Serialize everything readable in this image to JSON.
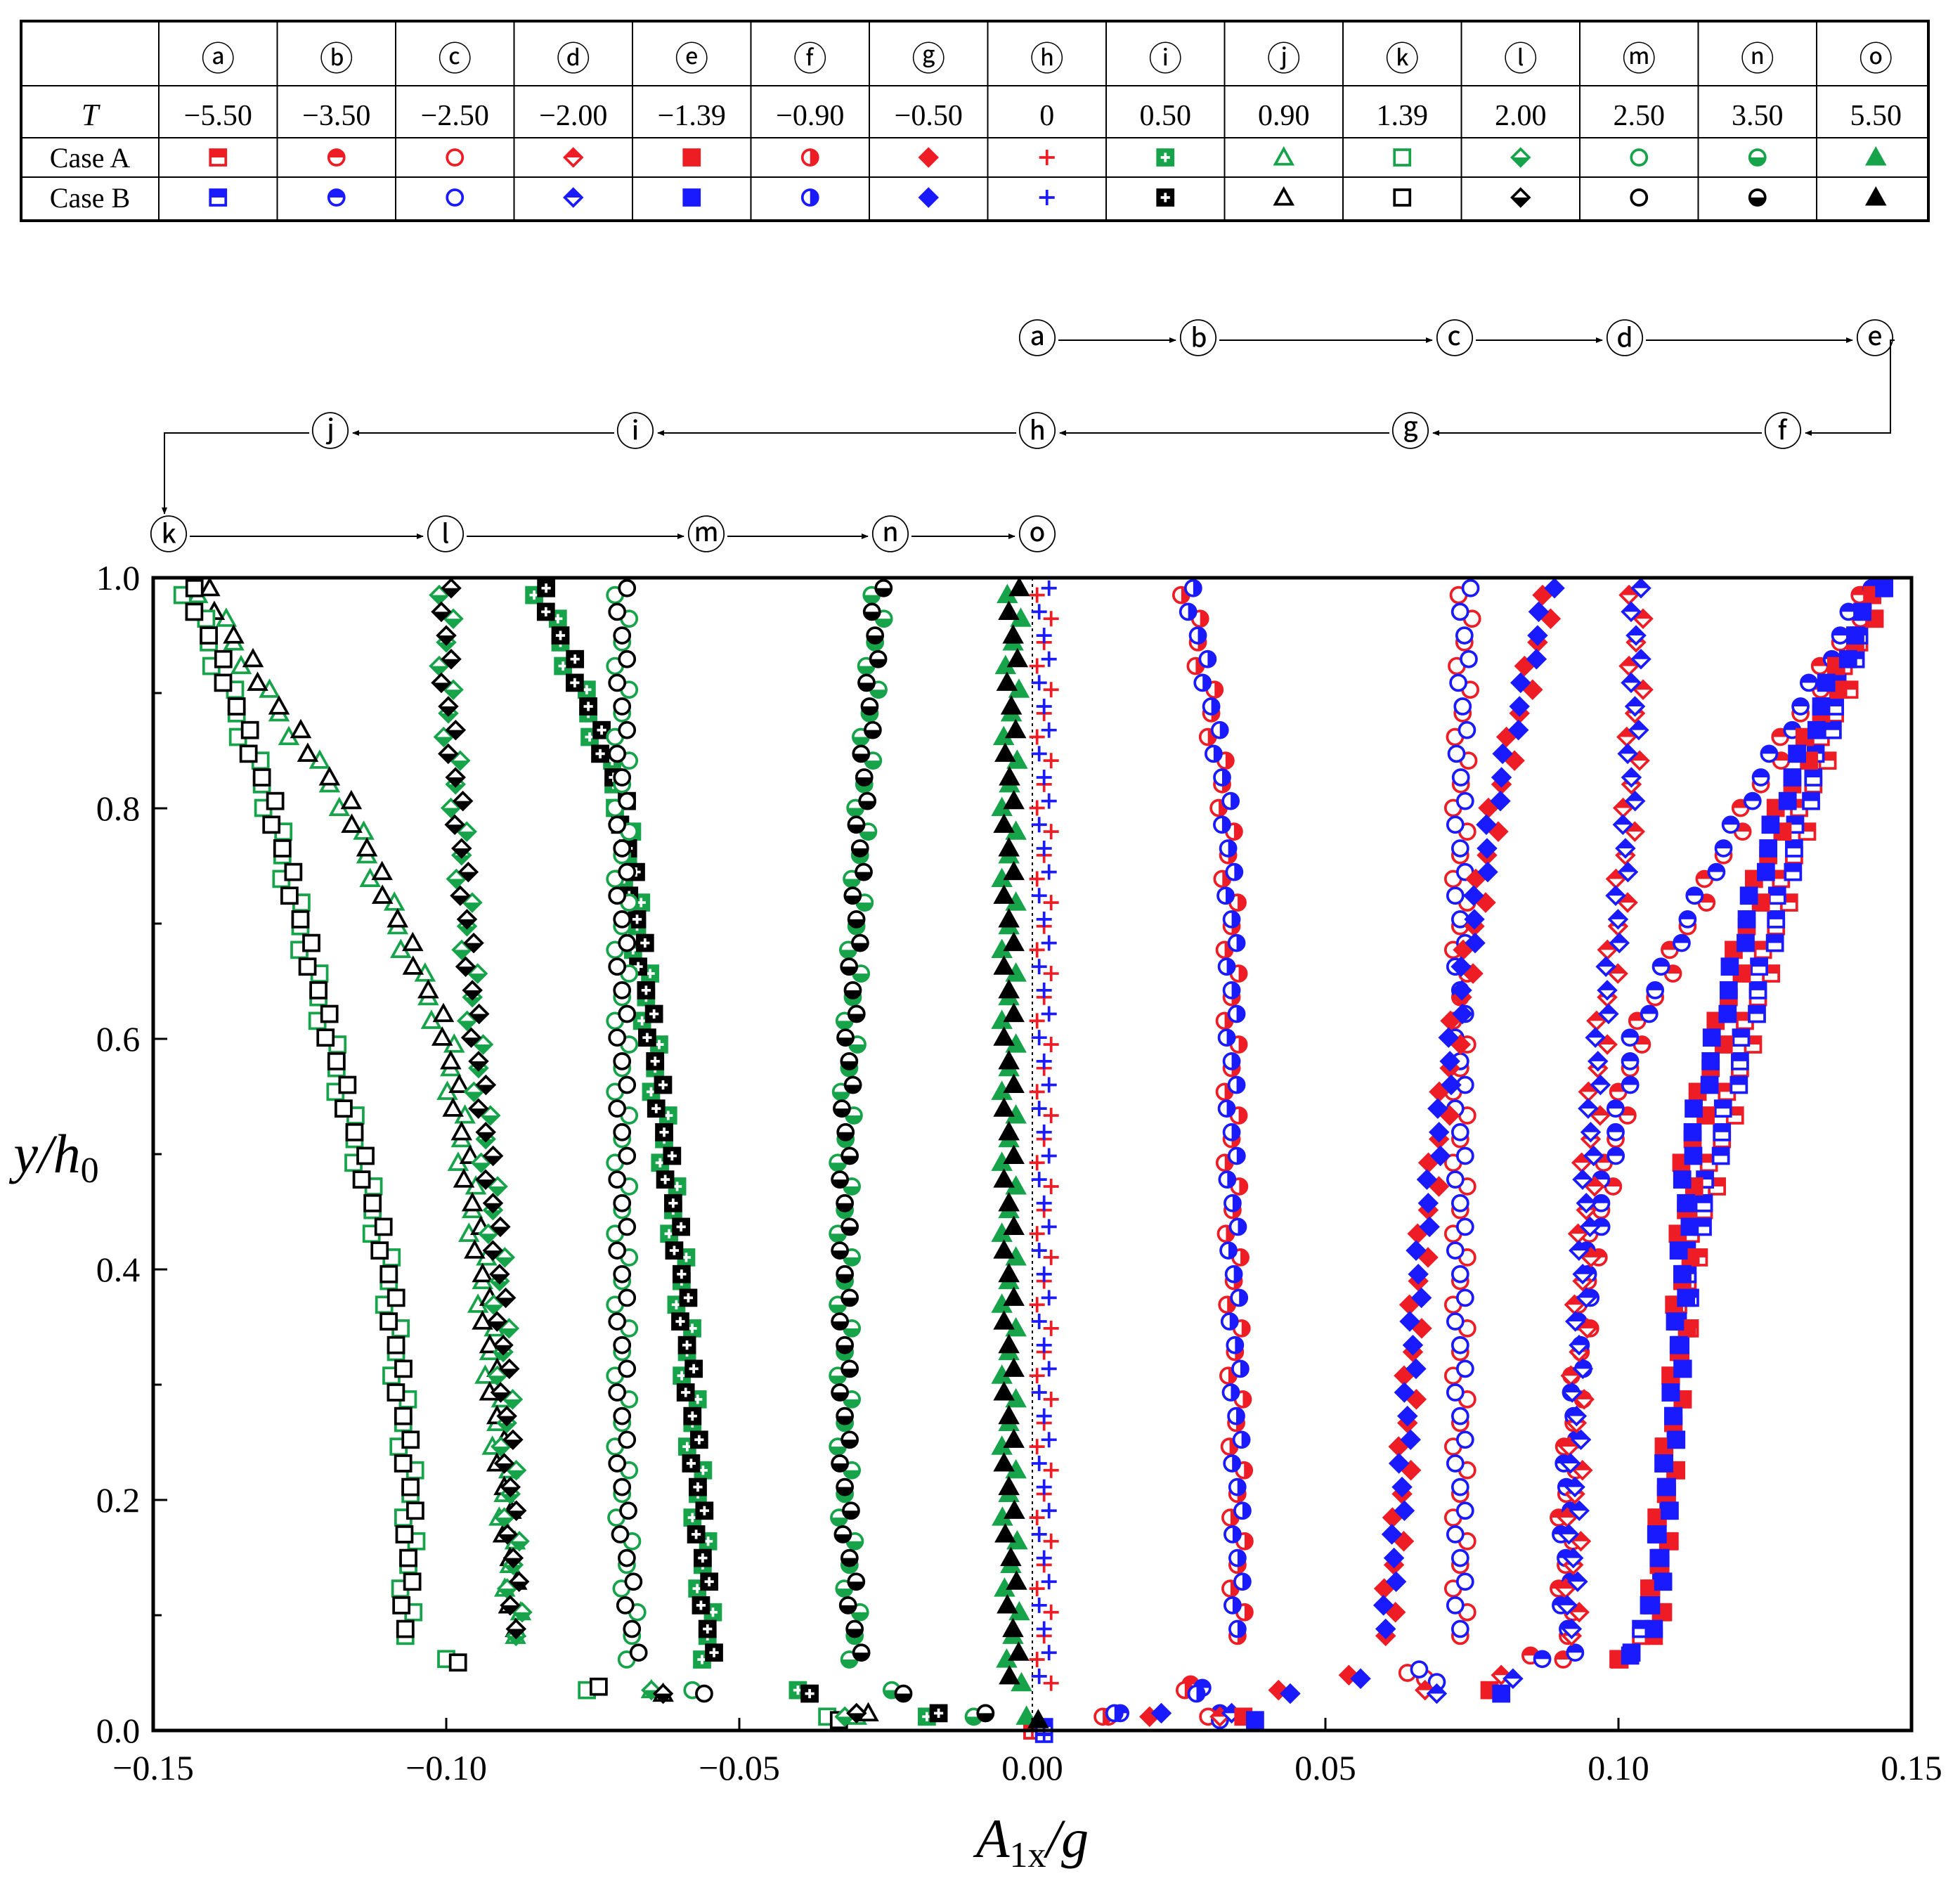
{
  "legend_table": {
    "header_label": "T",
    "row_labels": [
      "Case A",
      "Case B"
    ],
    "case_colors": {
      "A": [
        "#ee1c25",
        "#ee1c25",
        "#ee1c25",
        "#ee1c25",
        "#ee1c25",
        "#ee1c25",
        "#ee1c25",
        "#ee1c25",
        "#16a34a",
        "#16a34a",
        "#16a34a",
        "#16a34a",
        "#16a34a",
        "#16a34a",
        "#16a34a"
      ],
      "B": [
        "#1a1aff",
        "#1a1aff",
        "#1a1aff",
        "#1a1aff",
        "#1a1aff",
        "#1a1aff",
        "#1a1aff",
        "#1a1aff",
        "#000000",
        "#000000",
        "#000000",
        "#000000",
        "#000000",
        "#000000",
        "#000000"
      ]
    },
    "columns": [
      {
        "id": "a",
        "label": "ⓐ",
        "T": "−5.50",
        "marker": "square-tophalf"
      },
      {
        "id": "b",
        "label": "ⓑ",
        "T": "−3.50",
        "marker": "circle-tophalf"
      },
      {
        "id": "c",
        "label": "ⓒ",
        "T": "−2.50",
        "marker": "circle-open"
      },
      {
        "id": "d",
        "label": "ⓓ",
        "T": "−2.00",
        "marker": "diamond-tophalf"
      },
      {
        "id": "e",
        "label": "ⓔ",
        "T": "−1.39",
        "marker": "square-filled"
      },
      {
        "id": "f",
        "label": "ⓕ",
        "T": "−0.90",
        "marker": "circle-righthalf"
      },
      {
        "id": "g",
        "label": "ⓖ",
        "T": "−0.50",
        "marker": "diamond-filled"
      },
      {
        "id": "h",
        "label": "ⓗ",
        "T": "0",
        "marker": "plus"
      },
      {
        "id": "i",
        "label": "ⓘ",
        "T": "0.50",
        "marker": "square-cross"
      },
      {
        "id": "j",
        "label": "ⓙ",
        "T": "0.90",
        "marker": "triangle-open"
      },
      {
        "id": "k",
        "label": "ⓚ",
        "T": "1.39",
        "marker": "square-open"
      },
      {
        "id": "l",
        "label": "ⓛ",
        "T": "2.00",
        "marker": "diamond-bottomhalf"
      },
      {
        "id": "m",
        "label": "ⓜ",
        "T": "2.50",
        "marker": "circle-open"
      },
      {
        "id": "n",
        "label": "ⓝ",
        "T": "3.50",
        "marker": "circle-bottomhalf"
      },
      {
        "id": "o",
        "label": "ⓞ",
        "T": "5.50",
        "marker": "triangle-filled"
      }
    ]
  },
  "sequence": {
    "row1": [
      "ⓐ",
      "ⓑ",
      "ⓒ",
      "ⓓ",
      "ⓔ"
    ],
    "row2": [
      "ⓕ",
      "ⓖ",
      "ⓗ",
      "ⓘ",
      "ⓙ"
    ],
    "row3": [
      "ⓚ",
      "ⓛ",
      "ⓜ",
      "ⓝ",
      "ⓞ"
    ]
  },
  "chart_data": {
    "type": "scatter",
    "xlabel_main": "A",
    "xlabel_sub": "1x",
    "xlabel_tail": "/g",
    "ylabel_main": "y/h",
    "ylabel_sub": "0",
    "xlim": [
      -0.15,
      0.15
    ],
    "ylim": [
      0.0,
      1.0
    ],
    "x_ticks": [
      -0.15,
      -0.1,
      -0.05,
      0.0,
      0.05,
      0.1,
      0.15
    ],
    "x_tick_labels": [
      "−0.15",
      "−0.10",
      "−0.05",
      "0.00",
      "0.05",
      "0.10",
      "0.15"
    ],
    "y_ticks": [
      0.0,
      0.2,
      0.4,
      0.6,
      0.8,
      1.0
    ],
    "y_tick_labels": [
      "0.0",
      "0.2",
      "0.4",
      "0.6",
      "0.8",
      "1.0"
    ],
    "y_minor_step": 0.1,
    "reference_line_x": 0.0,
    "series": [
      {
        "name": "a",
        "profile": {
          "y": [
            0.0,
            0.05,
            0.1,
            0.2,
            0.4,
            0.6,
            0.8,
            0.9,
            1.0
          ],
          "x": [
            0.0,
            0.1,
            0.106,
            0.108,
            0.112,
            0.122,
            0.132,
            0.138,
            0.145
          ]
        },
        "bottom": [
          [
            0.0,
            0.0
          ],
          [
            0.0,
            0.0
          ]
        ]
      },
      {
        "name": "b",
        "profile": {
          "y": [
            0.0,
            0.05,
            0.1,
            0.2,
            0.4,
            0.6,
            0.7,
            0.8,
            0.9,
            1.0
          ],
          "x": [
            0.0,
            0.092,
            0.091,
            0.091,
            0.095,
            0.103,
            0.112,
            0.122,
            0.133,
            0.144
          ]
        },
        "bottom": [
          [
            0.027,
            0.04
          ],
          [
            0.03,
            0.012
          ],
          [
            0.085,
            0.065
          ],
          [
            0.013,
            0.012
          ]
        ]
      },
      {
        "name": "c",
        "profile": {
          "y": [
            0.0,
            0.07,
            0.2,
            0.5,
            0.8,
            1.0
          ],
          "x": [
            0.0,
            0.073,
            0.073,
            0.073,
            0.073,
            0.074
          ]
        },
        "bottom": [
          [
            0.067,
            0.045
          ],
          [
            0.064,
            0.05
          ],
          [
            0.03,
            0.012
          ]
        ]
      },
      {
        "name": "d",
        "profile": {
          "y": [
            0.0,
            0.08,
            0.3,
            0.5,
            0.6,
            0.7,
            0.8,
            0.9,
            1.0
          ],
          "x": [
            0.0,
            0.092,
            0.093,
            0.095,
            0.097,
            0.1,
            0.102,
            0.103,
            0.103
          ]
        },
        "bottom": [
          [
            0.067,
            0.035
          ],
          [
            0.032,
            0.012
          ],
          [
            0.08,
            0.048
          ]
        ]
      },
      {
        "name": "e",
        "profile": {
          "y": [
            0.0,
            0.08,
            0.3,
            0.5,
            0.7,
            0.8,
            0.9,
            1.0
          ],
          "x": [
            0.0,
            0.106,
            0.11,
            0.112,
            0.122,
            0.128,
            0.136,
            0.146
          ]
        },
        "bottom": [
          [
            0.078,
            0.035
          ],
          [
            0.1,
            0.062
          ],
          [
            0.036,
            0.012
          ]
        ]
      },
      {
        "name": "f",
        "profile": {
          "y": [
            0.0,
            0.07,
            0.2,
            0.5,
            0.7,
            0.8,
            0.9,
            1.0
          ],
          "x": [
            0.0,
            0.035,
            0.035,
            0.034,
            0.034,
            0.033,
            0.03,
            0.026
          ]
        },
        "bottom": [
          [
            0.026,
            0.035
          ],
          [
            0.012,
            0.012
          ]
        ]
      },
      {
        "name": "g",
        "profile": {
          "y": [
            0.0,
            0.07,
            0.2,
            0.4,
            0.6,
            0.8,
            0.9,
            1.0
          ],
          "x": [
            0.0,
            0.06,
            0.063,
            0.066,
            0.072,
            0.079,
            0.084,
            0.089
          ]
        },
        "bottom": [
          [
            0.042,
            0.035
          ],
          [
            0.02,
            0.012
          ],
          [
            0.054,
            0.048
          ]
        ]
      },
      {
        "name": "h",
        "profile": {
          "y": [
            0.0,
            0.03,
            0.2,
            0.5,
            0.8,
            1.0
          ],
          "x": [
            0.0,
            0.002,
            0.002,
            0.002,
            0.002,
            0.002
          ]
        },
        "bottom": [
          [
            0.0,
            0.0
          ]
        ]
      },
      {
        "name": "i",
        "profile": {
          "y": [
            0.0,
            0.05,
            0.2,
            0.4,
            0.6,
            0.8,
            0.9,
            1.0
          ],
          "x": [
            0.0,
            -0.055,
            -0.057,
            -0.06,
            -0.065,
            -0.07,
            -0.077,
            -0.085
          ]
        },
        "bottom": [
          [
            -0.04,
            0.035
          ],
          [
            -0.018,
            0.012
          ]
        ]
      },
      {
        "name": "j",
        "profile": {
          "y": [
            0.0,
            0.07,
            0.2,
            0.4,
            0.6,
            0.8,
            0.9,
            1.0
          ],
          "x": [
            0.0,
            -0.088,
            -0.09,
            -0.094,
            -0.1,
            -0.117,
            -0.131,
            -0.143
          ]
        },
        "bottom": [
          [
            -0.065,
            0.035
          ],
          [
            -0.03,
            0.012
          ]
        ]
      },
      {
        "name": "k",
        "profile": {
          "y": [
            0.0,
            0.08,
            0.2,
            0.4,
            0.6,
            0.8,
            0.9,
            1.0
          ],
          "x": [
            0.0,
            -0.107,
            -0.106,
            -0.11,
            -0.12,
            -0.13,
            -0.137,
            -0.145
          ]
        },
        "bottom": [
          [
            -0.1,
            0.062
          ],
          [
            -0.076,
            0.035
          ],
          [
            -0.035,
            0.012
          ]
        ]
      },
      {
        "name": "l",
        "profile": {
          "y": [
            0.0,
            0.07,
            0.2,
            0.4,
            0.6,
            0.8,
            0.9,
            1.0
          ],
          "x": [
            0.0,
            -0.088,
            -0.089,
            -0.091,
            -0.095,
            -0.098,
            -0.1,
            -0.1
          ]
        },
        "bottom": [
          [
            -0.065,
            0.035
          ],
          [
            -0.032,
            0.012
          ]
        ]
      },
      {
        "name": "m",
        "profile": {
          "y": [
            0.0,
            0.06,
            0.2,
            0.5,
            0.8,
            1.0
          ],
          "x": [
            0.0,
            -0.068,
            -0.07,
            -0.07,
            -0.07,
            -0.07
          ]
        },
        "bottom": [
          [
            -0.058,
            0.035
          ],
          [
            -0.01,
            0.012
          ]
        ]
      },
      {
        "name": "n",
        "profile": {
          "y": [
            0.0,
            0.06,
            0.2,
            0.5,
            0.8,
            1.0
          ],
          "x": [
            0.0,
            -0.03,
            -0.032,
            -0.032,
            -0.029,
            -0.026
          ]
        },
        "bottom": [
          [
            -0.024,
            0.035
          ],
          [
            -0.01,
            0.012
          ]
        ]
      },
      {
        "name": "o",
        "profile": {
          "y": [
            0.0,
            0.03,
            0.2,
            0.5,
            0.8,
            1.0
          ],
          "x": [
            0.0,
            -0.003,
            -0.004,
            -0.004,
            -0.004,
            -0.003
          ]
        },
        "bottom": [
          [
            -0.001,
            0.012
          ]
        ]
      }
    ]
  }
}
